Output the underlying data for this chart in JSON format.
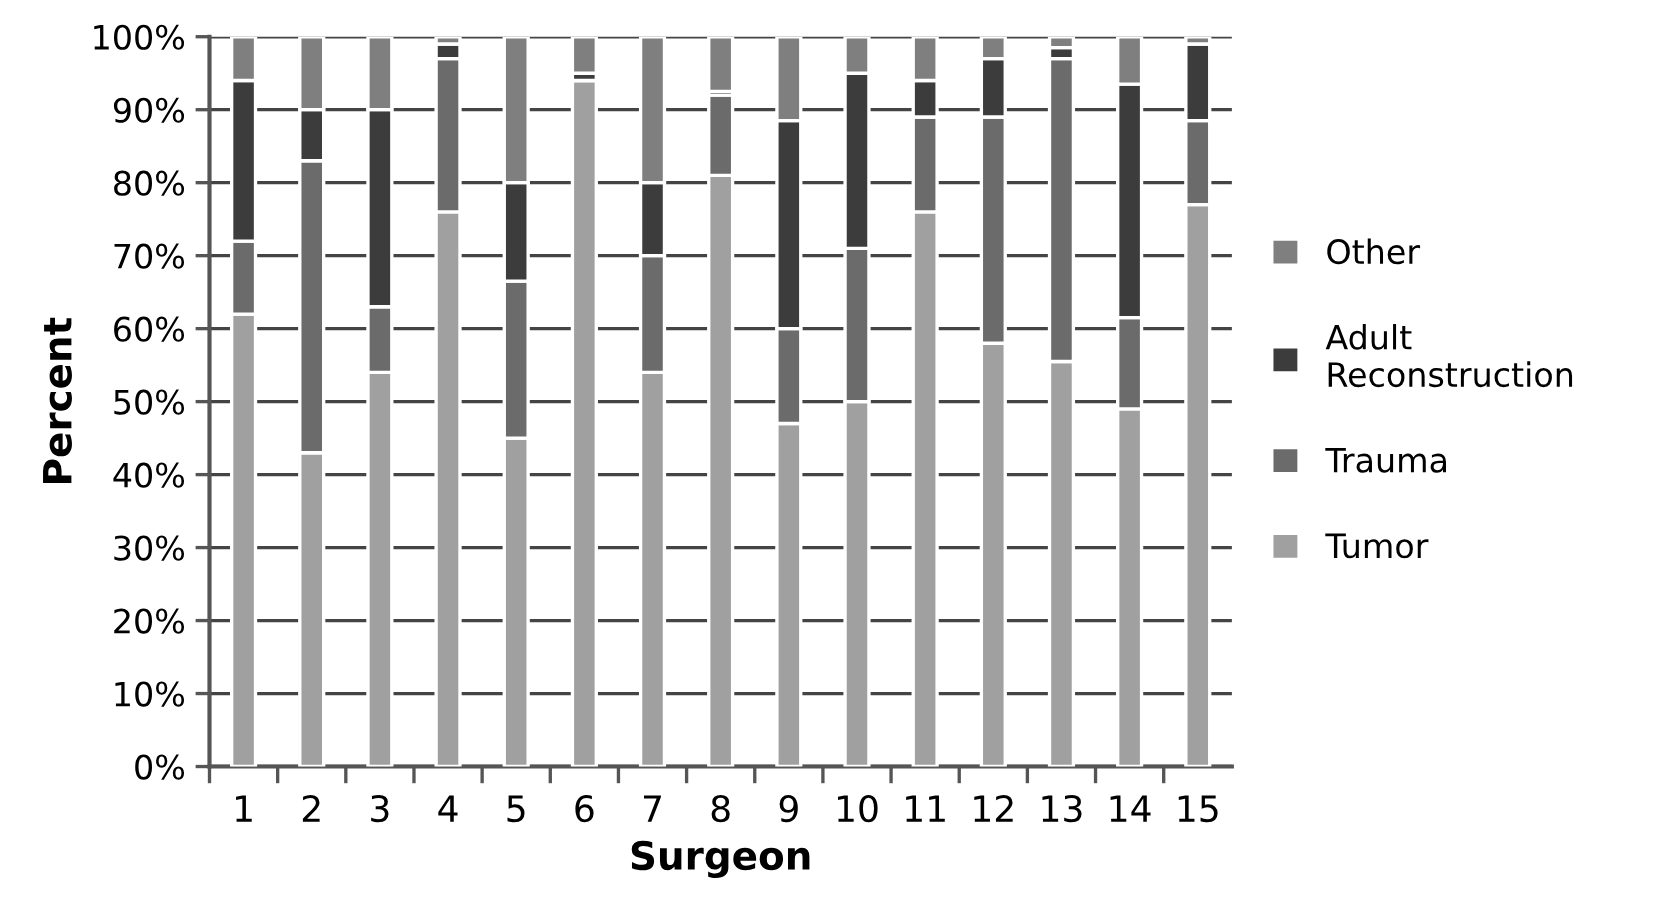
{
  "chart_data": {
    "type": "bar",
    "stacked": true,
    "xlabel": "Surgeon",
    "ylabel": "Percent",
    "categories": [
      "1",
      "2",
      "3",
      "4",
      "5",
      "6",
      "7",
      "8",
      "9",
      "10",
      "11",
      "12",
      "13",
      "14",
      "15"
    ],
    "series": [
      {
        "name": "Tumor",
        "color": "#a0a0a0",
        "values": [
          62,
          43,
          54,
          76,
          45,
          94,
          54,
          81,
          47,
          50,
          76,
          58,
          55.5,
          49,
          77
        ]
      },
      {
        "name": "Trauma",
        "color": "#6b6b6b",
        "values": [
          10,
          40,
          9,
          21,
          21.5,
          null,
          16,
          11,
          13,
          21,
          13,
          31,
          41.5,
          12.5,
          11.5
        ]
      },
      {
        "name": "Adult\nReconstruction",
        "color": "#3c3c3c",
        "values": [
          22,
          7,
          27,
          2,
          13.5,
          1,
          10,
          0.5,
          28.5,
          24,
          5,
          8,
          1.5,
          32,
          10.5
        ]
      },
      {
        "name": "Other",
        "color": "#7f7f7f",
        "values": [
          6,
          10,
          10,
          1,
          20,
          5,
          20,
          7.5,
          11.5,
          5,
          6,
          3,
          1.5,
          6.5,
          1
        ]
      }
    ],
    "ylim": [
      0,
      100
    ],
    "yticks": [
      {
        "value": 0,
        "label": "0%"
      },
      {
        "value": 10,
        "label": "10%"
      },
      {
        "value": 20,
        "label": "20%"
      },
      {
        "value": 30,
        "label": "30%"
      },
      {
        "value": 40,
        "label": "40%"
      },
      {
        "value": 50,
        "label": "50%"
      },
      {
        "value": 60,
        "label": "60%"
      },
      {
        "value": 70,
        "label": "70%"
      },
      {
        "value": 80,
        "label": "80%"
      },
      {
        "value": 90,
        "label": "90%"
      },
      {
        "value": 100,
        "label": "100%"
      }
    ],
    "grid": "y",
    "legend": "right"
  }
}
